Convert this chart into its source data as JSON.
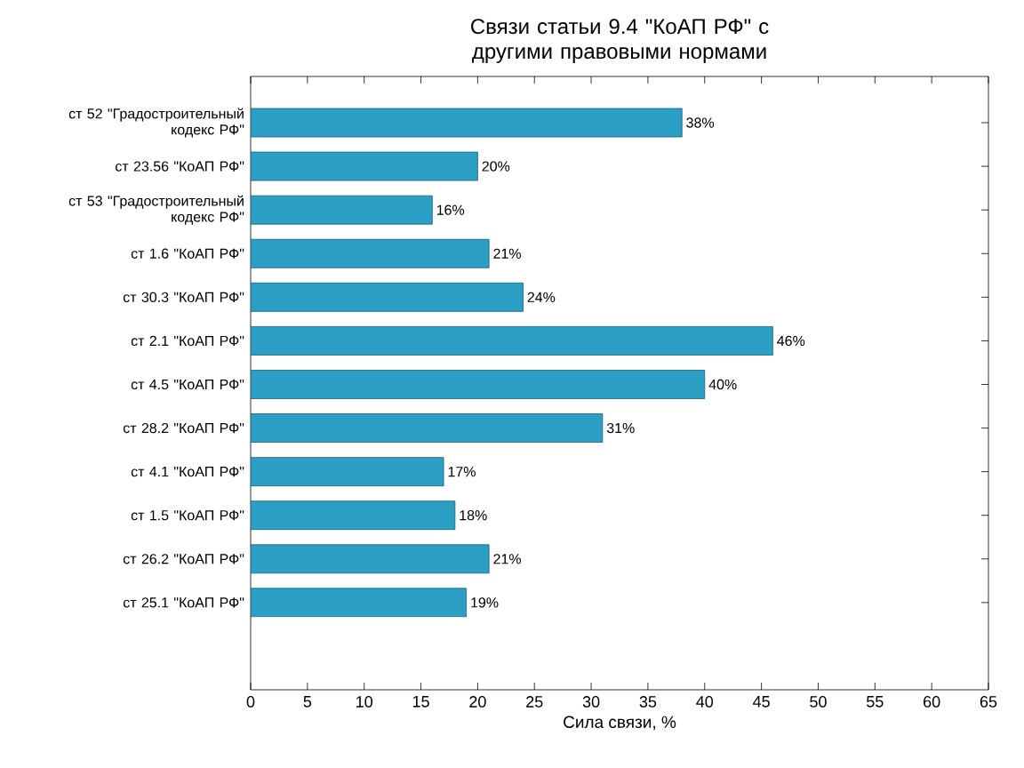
{
  "chart_data": {
    "type": "bar",
    "orientation": "horizontal",
    "title": "Связи статьи 9.4 \"КоАП РФ\" с другими правовыми нормами",
    "xlabel": "Сила связи, %",
    "categories": [
      "ст 52 \"Градостроительный кодекс РФ\"",
      "ст 23.56 \"КоАП РФ\"",
      "ст 53 \"Градостроительный кодекс РФ\"",
      "ст 1.6 \"КоАП РФ\"",
      "ст 30.3 \"КоАП РФ\"",
      "ст 2.1 \"КоАП РФ\"",
      "ст 4.5 \"КоАП РФ\"",
      "ст 28.2 \"КоАП РФ\"",
      "ст 4.1 \"КоАП РФ\"",
      "ст 1.5 \"КоАП РФ\"",
      "ст 26.2 \"КоАП РФ\"",
      "ст 25.1 \"КоАП РФ\""
    ],
    "values": [
      38,
      20,
      16,
      21,
      24,
      46,
      40,
      31,
      17,
      18,
      21,
      19
    ],
    "value_labels": [
      "38%",
      "20%",
      "16%",
      "21%",
      "24%",
      "46%",
      "40%",
      "31%",
      "17%",
      "18%",
      "21%",
      "19%"
    ],
    "color": "#2b9fc4",
    "xlim": [
      0,
      65
    ],
    "xticks": [
      0,
      5,
      10,
      15,
      20,
      25,
      30,
      35,
      40,
      45,
      50,
      55,
      60,
      65
    ],
    "grid": false
  }
}
